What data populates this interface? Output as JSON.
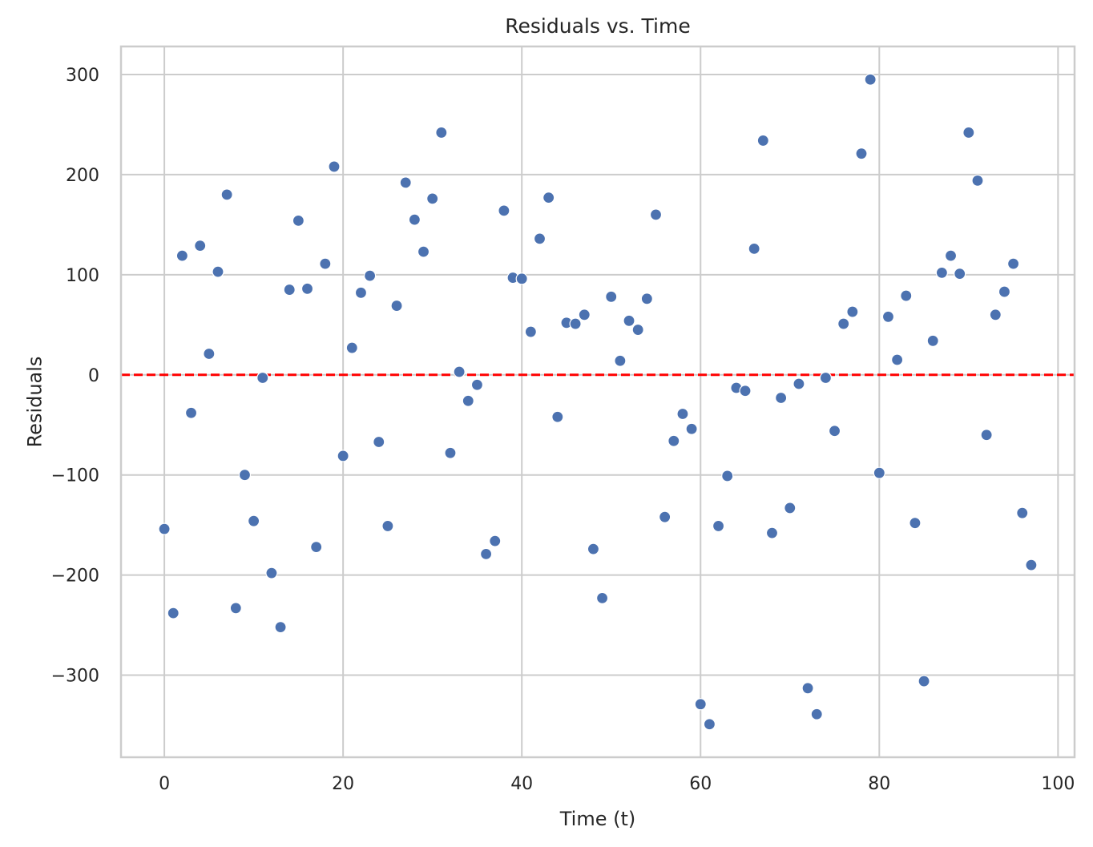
{
  "chart_data": {
    "type": "scatter",
    "title": "Residuals vs. Time",
    "xlabel": "Time (t)",
    "ylabel": "Residuals",
    "xlim": [
      -4.85,
      101.85
    ],
    "ylim": [
      -382,
      328
    ],
    "x_ticks": [
      0,
      20,
      40,
      60,
      80,
      100
    ],
    "y_ticks": [
      300,
      200,
      100,
      0,
      -100,
      -200,
      -300
    ],
    "y_tick_labels": [
      "300",
      "200",
      "100",
      "0",
      "−100",
      "−200",
      "−300"
    ],
    "grid": true,
    "reference_line": {
      "y": 0,
      "color": "#ff0000",
      "style": "dashed"
    },
    "point_color": "#4c72b0",
    "series": [
      {
        "x": [
          0,
          1,
          2,
          3,
          4,
          5,
          6,
          7,
          8,
          9,
          10,
          11,
          12,
          13,
          14,
          15,
          16,
          17,
          18,
          19,
          20,
          21,
          22,
          23,
          24,
          25,
          26,
          27,
          28,
          29,
          30,
          31,
          32,
          33,
          34,
          35,
          36,
          37,
          38,
          39,
          40,
          41,
          42,
          43,
          44,
          45,
          46,
          47,
          48,
          49,
          50,
          51,
          52,
          53,
          54,
          55,
          56,
          57,
          58,
          59,
          60,
          61,
          62,
          63,
          64,
          65,
          66,
          67,
          68,
          69,
          70,
          71,
          72,
          73,
          74,
          75,
          76,
          77,
          78,
          79,
          80,
          81,
          82,
          83,
          84,
          85,
          86,
          87,
          88,
          89,
          90,
          91,
          92,
          93,
          94,
          95,
          96,
          97
        ],
        "y": [
          -154,
          -238,
          119,
          -38,
          129,
          21,
          103,
          180,
          -233,
          -100,
          -146,
          -3,
          -198,
          -252,
          85,
          154,
          86,
          -172,
          111,
          208,
          -81,
          27,
          82,
          99,
          -67,
          -151,
          69,
          192,
          155,
          123,
          176,
          242,
          -78,
          3,
          -26,
          -10,
          -179,
          -166,
          164,
          97,
          96,
          43,
          136,
          177,
          -42,
          52,
          51,
          60,
          -174,
          -223,
          78,
          14,
          54,
          45,
          76,
          160,
          -142,
          -66,
          -39,
          -54,
          -329,
          -349,
          -151,
          -101,
          -13,
          -16,
          126,
          234,
          -158,
          -23,
          -133,
          -9,
          -313,
          -339,
          -3,
          -56,
          51,
          63,
          221,
          295,
          -98,
          58,
          15,
          79,
          -148,
          -306,
          34,
          102,
          119,
          101,
          242,
          194,
          -60,
          60,
          83,
          111,
          -138,
          -190
        ]
      }
    ]
  }
}
